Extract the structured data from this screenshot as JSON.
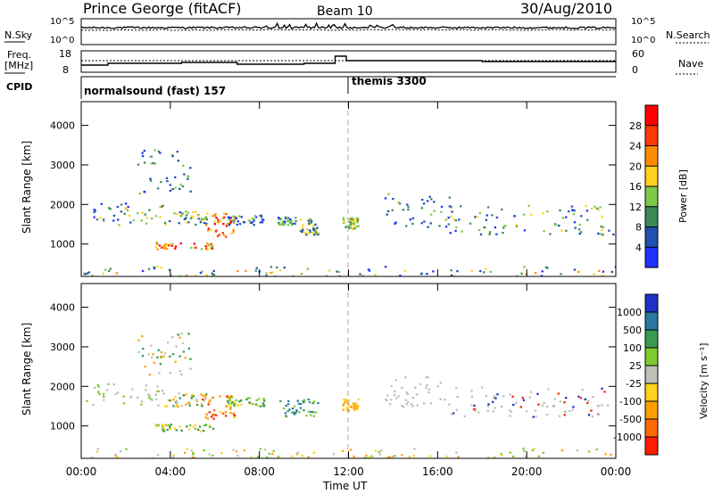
{
  "header": {
    "station": "Prince George (fitACF)",
    "beam": "Beam 10",
    "date": "30/Aug/2010"
  },
  "strip_noise": {
    "left_label": "N.Sky",
    "right_label": "N.Search",
    "left_ticks": [
      "10^5",
      "10^0"
    ],
    "right_ticks": [
      "10^5",
      "10^0"
    ]
  },
  "strip_freq": {
    "left_label": "Freq.",
    "left_unit": "[MHz]",
    "right_label": "Nave",
    "left_ticks": [
      "18",
      "8"
    ],
    "right_ticks": [
      "60",
      "0"
    ]
  },
  "cpid": {
    "label": "CPID",
    "segments": [
      {
        "name": "normalsound (fast) 157",
        "start_hour": 0
      },
      {
        "name": "themis 3300",
        "start_hour": 12
      }
    ]
  },
  "chart_data": [
    {
      "type": "heatmap",
      "title": "",
      "ylabel": "Slant Range [km]",
      "xlim_hours": [
        0,
        24
      ],
      "ylim": [
        180,
        4600
      ],
      "yticks": [
        1000,
        2000,
        3000,
        4000
      ],
      "colorbar": {
        "label": "Power [dB]",
        "ticks": [
          "4",
          "8",
          "12",
          "16",
          "20",
          "24",
          "28"
        ],
        "colors": [
          "#1e32ff",
          "#2050b0",
          "#3a8a5a",
          "#7ec84a",
          "#ffd21e",
          "#ff8c00",
          "#ff3a00",
          "#ff0000"
        ]
      },
      "regions": [
        {
          "t0": 0.3,
          "t1": 3.6,
          "r0": 1400,
          "r1": 2100,
          "level": "12-20"
        },
        {
          "t0": 5.6,
          "t1": 6.8,
          "r0": 1250,
          "r1": 1750,
          "level": "24-28"
        },
        {
          "t0": 3.3,
          "t1": 5.8,
          "r0": 900,
          "r1": 1050,
          "level": "24-28"
        },
        {
          "t0": 6.6,
          "t1": 10.9,
          "r0": 1400,
          "r1": 1800,
          "level": "4-16"
        },
        {
          "t0": 11.8,
          "t1": 12.4,
          "r0": 1400,
          "r1": 1700,
          "level": "16-20"
        },
        {
          "t0": 13.6,
          "t1": 23.9,
          "r0": 1250,
          "r1": 2250,
          "level": "4-16"
        },
        {
          "t0": 2.5,
          "t1": 4.8,
          "r0": 2400,
          "r1": 3400,
          "level": "4-16"
        }
      ]
    },
    {
      "type": "heatmap",
      "title": "",
      "ylabel": "Slant Range [km]",
      "xlabel": "Time UT",
      "xticks": [
        "00:00",
        "04:00",
        "08:00",
        "12:00",
        "16:00",
        "20:00",
        "00:00"
      ],
      "xlim_hours": [
        0,
        24
      ],
      "ylim": [
        180,
        4600
      ],
      "yticks": [
        1000,
        2000,
        3000,
        4000
      ],
      "colorbar": {
        "label": "Velocity [m s⁻¹]",
        "ticks": [
          "1000",
          "500",
          "100",
          "25",
          "-25",
          "-100",
          "-500",
          "-1000"
        ],
        "colors": [
          "#1e32c8",
          "#2878a0",
          "#3a9a50",
          "#7ecb30",
          "#c0c0b8",
          "#ffd21e",
          "#ffa000",
          "#ff6a00",
          "#ff1e00"
        ]
      },
      "regions": [
        {
          "t0": 0.3,
          "t1": 3.6,
          "r0": 1400,
          "r1": 2100,
          "level": "ground scatter (grey)"
        },
        {
          "t0": 5.6,
          "t1": 6.8,
          "r0": 1250,
          "r1": 1750,
          "level": "-100 to -500"
        },
        {
          "t0": 3.3,
          "t1": 5.8,
          "r0": 900,
          "r1": 1050,
          "level": "25 to 100"
        },
        {
          "t0": 13.6,
          "t1": 23.9,
          "r0": 1250,
          "r1": 2250,
          "level": "ground scatter (grey)"
        }
      ]
    }
  ]
}
